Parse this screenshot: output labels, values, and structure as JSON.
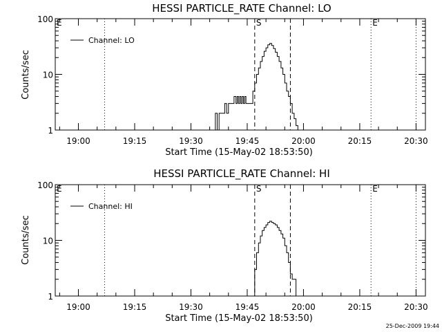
{
  "chart_data": [
    {
      "type": "line",
      "title": "HESSI PARTICLE_RATE Channel: LO",
      "xlabel": "Start Time (15-May-02 18:53:50)",
      "ylabel": "Counts/sec",
      "yscale": "log",
      "ylim": [
        1,
        100
      ],
      "yticks": [
        "1",
        "10",
        "100"
      ],
      "xlim": [
        "18:53:50",
        "20:32:30"
      ],
      "xticks": [
        "19:00",
        "19:15",
        "19:30",
        "19:45",
        "20:00",
        "20:15",
        "20:30"
      ],
      "legend": {
        "label": "Channel: LO",
        "position": "top-left"
      },
      "markers": [
        {
          "label": "E",
          "time": "18:53:50",
          "style": "dotted"
        },
        {
          "label": "",
          "time": "19:07:00",
          "style": "dotted"
        },
        {
          "label": "S",
          "time": "19:47:00",
          "style": "dashed"
        },
        {
          "label": "",
          "time": "19:56:30",
          "style": "dashed"
        },
        {
          "label": "E",
          "time": "20:18:00",
          "style": "dotted"
        },
        {
          "label": "",
          "time": "20:30:00",
          "style": "dotted"
        }
      ],
      "series": [
        {
          "name": "Channel: LO",
          "x": [
            "19:36:00",
            "19:36:30",
            "19:37:00",
            "19:37:30",
            "19:38:00",
            "19:38:30",
            "19:39:00",
            "19:39:30",
            "19:40:00",
            "19:40:30",
            "19:41:00",
            "19:41:30",
            "19:42:00",
            "19:42:20",
            "19:42:40",
            "19:43:00",
            "19:43:20",
            "19:43:40",
            "19:44:00",
            "19:44:20",
            "19:44:40",
            "19:45:00",
            "19:45:30",
            "19:46:00",
            "19:46:30",
            "19:47:00",
            "19:47:30",
            "19:48:00",
            "19:48:30",
            "19:49:00",
            "19:49:30",
            "19:50:00",
            "19:50:30",
            "19:51:00",
            "19:51:30",
            "19:52:00",
            "19:52:30",
            "19:53:00",
            "19:53:30",
            "19:54:00",
            "19:54:30",
            "19:55:00",
            "19:55:30",
            "19:56:00",
            "19:56:30",
            "19:57:00",
            "19:57:30",
            "19:58:00",
            "19:58:30"
          ],
          "y": [
            1,
            2,
            1,
            2,
            2,
            2,
            3,
            2,
            3,
            3,
            3,
            4,
            3,
            4,
            3,
            4,
            3,
            4,
            3,
            4,
            3,
            3,
            3,
            3,
            5,
            7,
            10,
            13,
            17,
            21,
            26,
            30,
            34,
            36,
            33,
            29,
            25,
            21,
            17,
            13,
            10,
            7,
            5,
            4,
            3,
            2,
            1.6,
            1.2,
            1
          ]
        }
      ]
    },
    {
      "type": "line",
      "title": "HESSI PARTICLE_RATE Channel: HI",
      "xlabel": "Start Time (15-May-02 18:53:50)",
      "ylabel": "Counts/sec",
      "yscale": "log",
      "ylim": [
        1,
        100
      ],
      "yticks": [
        "1",
        "10",
        "100"
      ],
      "xlim": [
        "18:53:50",
        "20:32:30"
      ],
      "xticks": [
        "19:00",
        "19:15",
        "19:30",
        "19:45",
        "20:00",
        "20:15",
        "20:30"
      ],
      "legend": {
        "label": "Channel: HI",
        "position": "top-left"
      },
      "markers": [
        {
          "label": "E",
          "time": "18:53:50",
          "style": "dotted"
        },
        {
          "label": "",
          "time": "19:07:00",
          "style": "dotted"
        },
        {
          "label": "S",
          "time": "19:47:00",
          "style": "dashed"
        },
        {
          "label": "",
          "time": "19:56:30",
          "style": "dashed"
        },
        {
          "label": "E",
          "time": "20:18:00",
          "style": "dotted"
        },
        {
          "label": "",
          "time": "20:30:00",
          "style": "dotted"
        }
      ],
      "series": [
        {
          "name": "Channel: HI",
          "x": [
            "19:46:30",
            "19:47:00",
            "19:47:30",
            "19:48:00",
            "19:48:30",
            "19:49:00",
            "19:49:30",
            "19:50:00",
            "19:50:30",
            "19:51:00",
            "19:51:30",
            "19:52:00",
            "19:52:30",
            "19:53:00",
            "19:53:30",
            "19:54:00",
            "19:54:30",
            "19:55:00",
            "19:55:30",
            "19:56:00",
            "19:56:30",
            "19:57:00",
            "19:57:30",
            "19:58:00"
          ],
          "y": [
            1,
            3,
            6,
            9,
            12,
            15,
            17,
            19,
            21,
            22,
            21,
            20,
            19,
            17,
            15,
            13,
            11,
            8,
            6,
            4,
            2.5,
            2,
            2,
            1
          ]
        }
      ]
    }
  ],
  "footer": {
    "timestamp": "25-Dec-2009 19:44"
  }
}
